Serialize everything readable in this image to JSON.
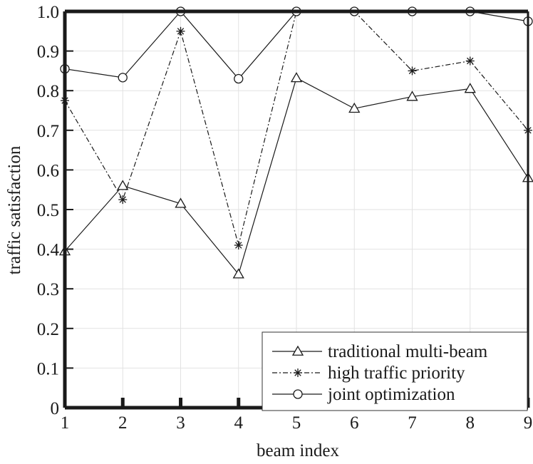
{
  "chart_data": {
    "type": "line",
    "title": "",
    "xlabel": "beam index",
    "ylabel": "traffic satisfaction",
    "x": [
      1,
      2,
      3,
      4,
      5,
      6,
      7,
      8,
      9
    ],
    "xlim": [
      1,
      9
    ],
    "ylim": [
      0,
      1
    ],
    "x_ticks": [
      "1",
      "2",
      "3",
      "4",
      "5",
      "6",
      "7",
      "8",
      "9"
    ],
    "y_ticks": [
      "0",
      "0.1",
      "0.2",
      "0.3",
      "0.4",
      "0.5",
      "0.6",
      "0.7",
      "0.8",
      "0.9",
      "1.0"
    ],
    "grid": true,
    "legend_position": "bottom-right",
    "series": [
      {
        "name": "traditional multi-beam",
        "marker": "triangle",
        "line_style": "solid",
        "values": [
          0.395,
          0.56,
          0.515,
          0.337,
          0.832,
          0.755,
          0.785,
          0.805,
          0.58
        ]
      },
      {
        "name": "high traffic priority",
        "marker": "asterisk",
        "line_style": "dash-dot",
        "values": [
          0.775,
          0.525,
          0.95,
          0.41,
          1.0,
          1.0,
          0.85,
          0.875,
          0.7
        ]
      },
      {
        "name": "joint optimization",
        "marker": "circle",
        "line_style": "solid",
        "values": [
          0.855,
          0.833,
          1.0,
          0.83,
          1.0,
          1.0,
          1.0,
          1.0,
          0.975
        ]
      }
    ]
  }
}
